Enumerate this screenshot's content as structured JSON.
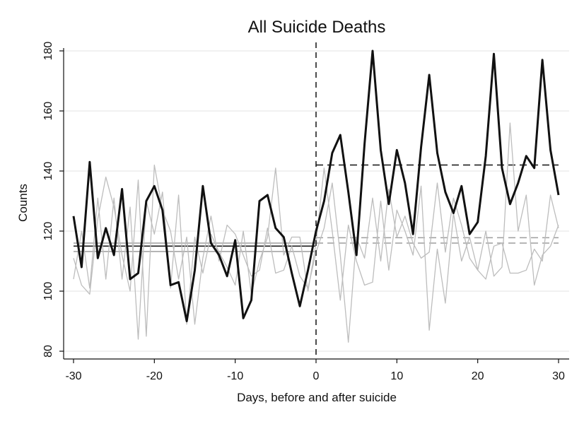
{
  "chart_data": {
    "type": "line",
    "title": "All Suicide Deaths",
    "xlabel": "Days, before and after suicide",
    "ylabel": "Counts",
    "xlim": [
      -30,
      30
    ],
    "ylim": [
      80,
      180
    ],
    "x_ticks": [
      -30,
      -20,
      -10,
      0,
      10,
      20,
      30
    ],
    "y_ticks": [
      80,
      100,
      120,
      140,
      160,
      180
    ],
    "grid": true,
    "event_day": 0,
    "colors": {
      "main": "#111111",
      "comparison": "#bdbdbd",
      "grid": "#e3e3e3"
    },
    "main_series": {
      "x": [
        -30,
        -29,
        -28,
        -27,
        -26,
        -25,
        -24,
        -23,
        -22,
        -21,
        -20,
        -19,
        -18,
        -17,
        -16,
        -15,
        -14,
        -13,
        -12,
        -11,
        -10,
        -9,
        -8,
        -7,
        -6,
        -5,
        -4,
        -3,
        -2,
        -1,
        0,
        1,
        2,
        3,
        4,
        5,
        6,
        7,
        8,
        9,
        10,
        11,
        12,
        13,
        14,
        15,
        16,
        17,
        18,
        19,
        20,
        21,
        22,
        23,
        24,
        25,
        26,
        27,
        28,
        29,
        30
      ],
      "values": [
        125,
        108,
        143,
        111,
        121,
        112,
        134,
        104,
        106,
        130,
        135,
        127,
        102,
        103,
        90,
        107,
        135,
        116,
        112,
        105,
        117,
        91,
        97,
        130,
        132,
        121,
        118,
        106,
        95,
        107,
        120,
        130,
        146,
        152,
        133,
        112,
        149,
        180,
        147,
        129,
        147,
        136,
        119,
        148,
        172,
        146,
        133,
        126,
        135,
        119,
        123,
        145,
        179,
        141,
        129,
        136,
        145,
        141,
        177,
        147,
        132
      ]
    },
    "comparison_series": [
      {
        "x": [
          -30,
          -29,
          -28,
          -27,
          -26,
          -25,
          -24,
          -23,
          -22,
          -21,
          -20,
          -19,
          -18,
          -17,
          -16,
          -15,
          -14,
          -13,
          -12,
          -11,
          -10,
          -9,
          -8,
          -7,
          -6,
          -5,
          -4,
          -3,
          -2,
          -1,
          0,
          1,
          2,
          3,
          4,
          5,
          6,
          7,
          8,
          9,
          10,
          11,
          12,
          13,
          14,
          15,
          16,
          17,
          18,
          19,
          20,
          21,
          22,
          23,
          24,
          25,
          26,
          27,
          28,
          29,
          30
        ],
        "values": [
          104,
          120,
          101,
          131,
          104,
          131,
          104,
          128,
          84,
          130,
          119,
          133,
          101,
          132,
          89,
          118,
          106,
          119,
          113,
          108,
          102,
          120,
          99,
          110,
          118,
          141,
          112,
          118,
          118,
          100,
          116,
          141,
          120,
          97,
          122,
          110,
          102,
          103,
          130,
          107,
          127,
          120,
          112,
          135,
          87,
          114,
          96,
          126,
          110,
          118,
          107,
          120,
          105,
          108,
          156,
          120,
          132,
          102,
          112,
          115,
          122
        ]
      },
      {
        "x": [
          -30,
          -29,
          -28,
          -27,
          -26,
          -25,
          -24,
          -23,
          -22,
          -21,
          -20,
          -19,
          -18,
          -17,
          -16,
          -15,
          -14,
          -13,
          -12,
          -11,
          -10,
          -9,
          -8,
          -7,
          -6,
          -5,
          -4,
          -3,
          -2,
          -1,
          0,
          1,
          2,
          3,
          4,
          5,
          6,
          7,
          8,
          9,
          10,
          11,
          12,
          13,
          14,
          15,
          16,
          17,
          18,
          19,
          20,
          21,
          22,
          23,
          24,
          25,
          26,
          27,
          28,
          29,
          30
        ],
        "values": [
          111,
          102,
          99,
          124,
          138,
          128,
          112,
          100,
          137,
          85,
          142,
          127,
          120,
          104,
          118,
          89,
          111,
          125,
          110,
          122,
          119,
          112,
          105,
          107,
          121,
          106,
          107,
          115,
          105,
          101,
          113,
          121,
          136,
          112,
          83,
          118,
          111,
          131,
          110,
          134,
          118,
          125,
          116,
          111,
          113,
          136,
          113,
          131,
          122,
          111,
          107,
          104,
          115,
          116,
          106,
          106,
          107,
          114,
          110,
          132,
          121
        ]
      }
    ],
    "reference_lines": [
      {
        "segment": "before",
        "value": 115.0,
        "style": "solid",
        "color": "#111111"
      },
      {
        "segment": "after",
        "value": 142.0,
        "style": "dashed",
        "color": "#111111"
      },
      {
        "segment": "before",
        "value": 113.2,
        "style": "solid",
        "color": "#9e9e9e"
      },
      {
        "segment": "before",
        "value": 116.0,
        "style": "solid",
        "color": "#9e9e9e"
      },
      {
        "segment": "after",
        "value": 116.0,
        "style": "dashed",
        "color": "#9e9e9e"
      },
      {
        "segment": "after",
        "value": 117.8,
        "style": "dashed",
        "color": "#9e9e9e"
      }
    ]
  }
}
